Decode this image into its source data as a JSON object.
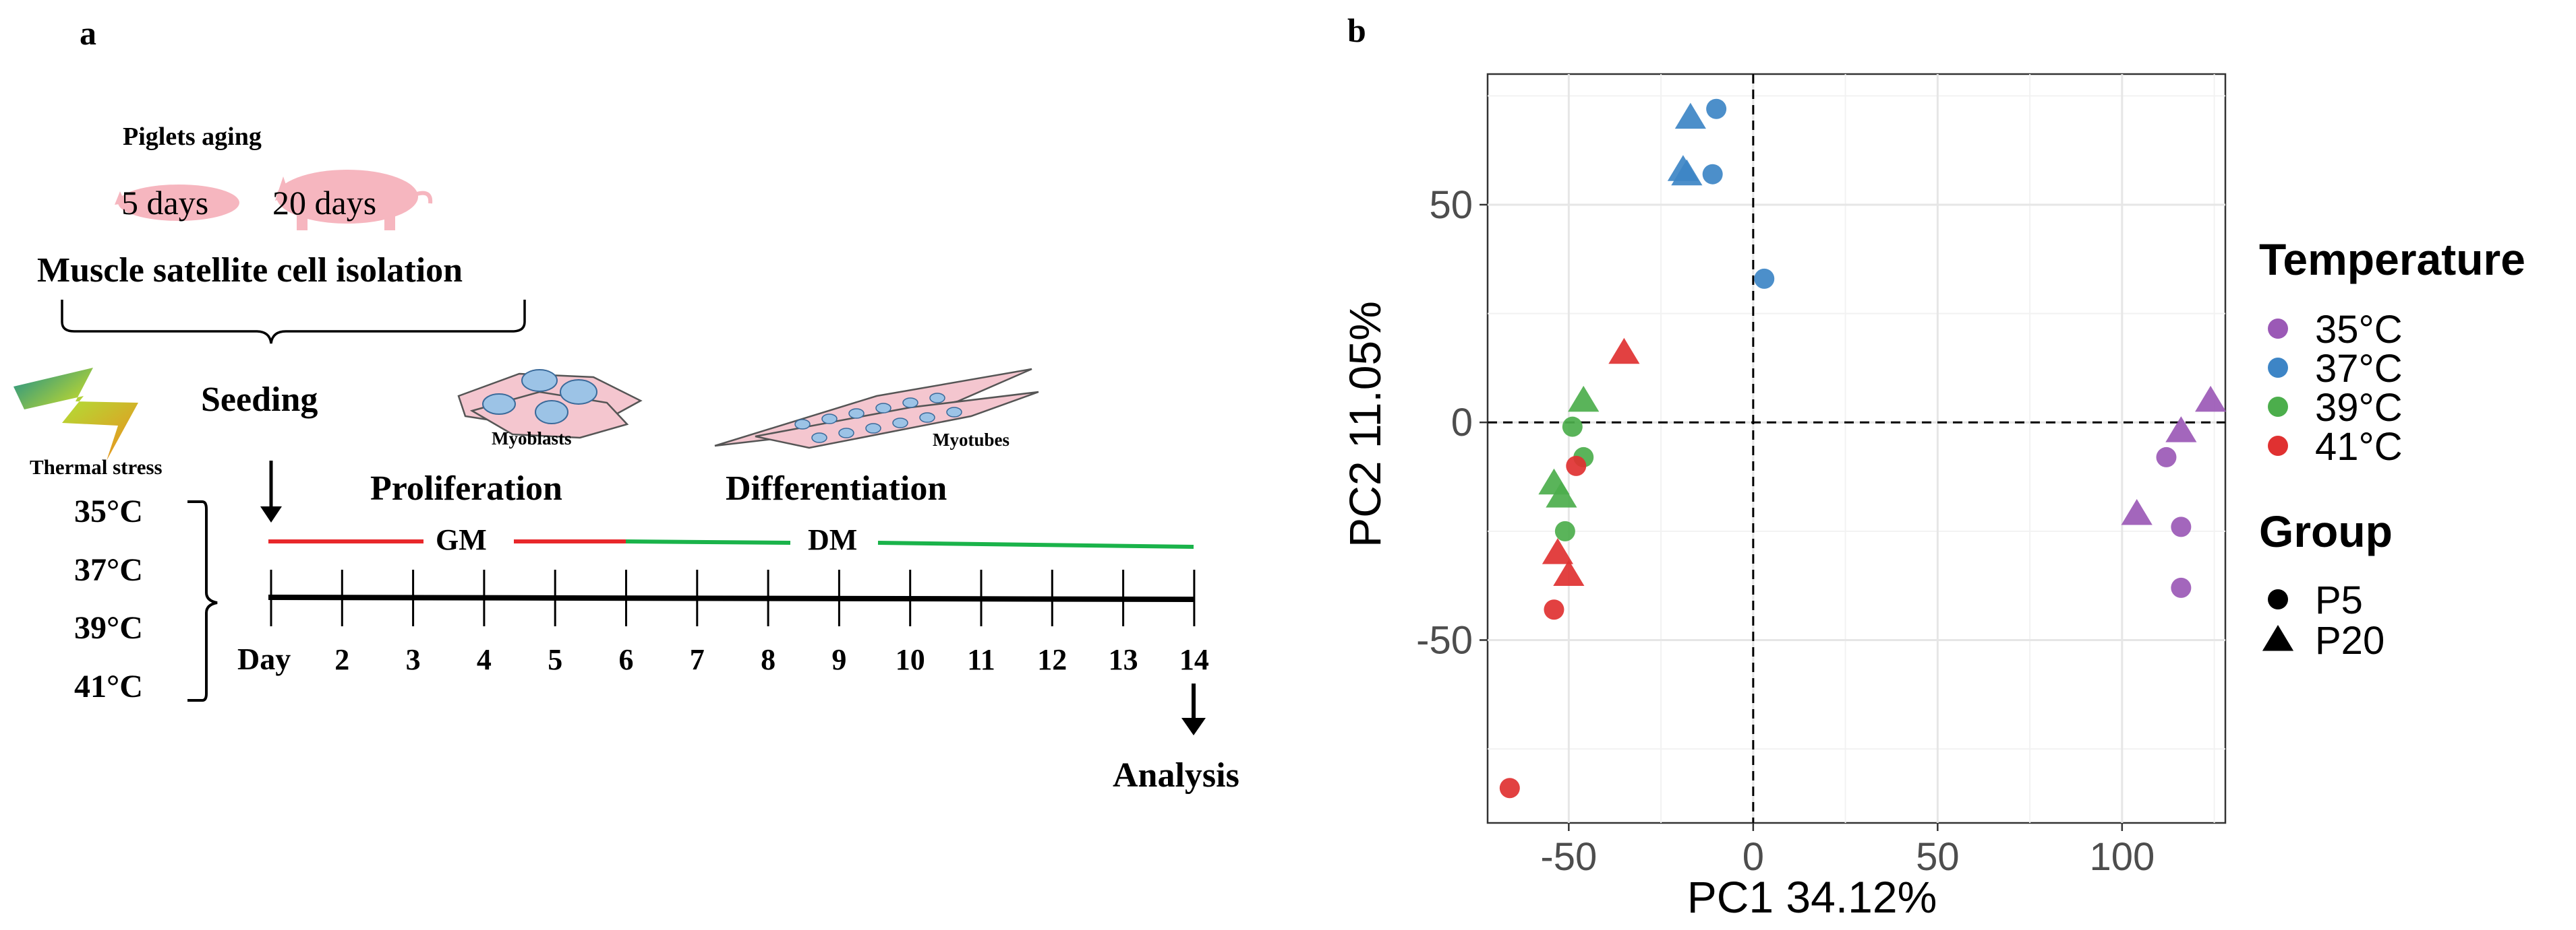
{
  "panel_a": {
    "label": "a",
    "piglets_heading": "Piglets aging",
    "age_1": "5 days",
    "age_2": "20 days",
    "isolation": "Muscle satellite cell isolation",
    "seeding": "Seeding",
    "thermal_stress": "Thermal stress",
    "temperatures": [
      "35°C",
      "37°C",
      "39°C",
      "41°C"
    ],
    "myoblasts": "Myoblasts",
    "myotubes": "Myotubes",
    "proliferation": "Proliferation",
    "differentiation": "Differentiation",
    "gm": "GM",
    "dm": "DM",
    "day_label": "Day",
    "days": [
      "2",
      "3",
      "4",
      "5",
      "6",
      "7",
      "8",
      "9",
      "10",
      "11",
      "12",
      "13",
      "14"
    ],
    "analysis": "Analysis",
    "colors": {
      "gm": "#e8272a",
      "dm": "#1ab34a",
      "cell_fill": "#f4c6cf",
      "nucleus": "#9cc3e6",
      "pig": "#f6b6bf"
    }
  },
  "panel_b": {
    "label": "b",
    "legend": {
      "temperature_title": "Temperature",
      "temperature_items": [
        {
          "label": "35°C",
          "color": "#9b59b6"
        },
        {
          "label": "37°C",
          "color": "#3d85c6"
        },
        {
          "label": "39°C",
          "color": "#4cae4c"
        },
        {
          "label": "41°C",
          "color": "#e03131"
        }
      ],
      "group_title": "Group",
      "group_items": [
        {
          "label": "P5",
          "shape": "circle"
        },
        {
          "label": "P20",
          "shape": "triangle"
        }
      ]
    }
  },
  "chart_data": {
    "type": "scatter",
    "title": "",
    "xlabel": "PC1 34.12%",
    "ylabel": "PC2 11.05%",
    "xlim": [
      -72,
      128
    ],
    "ylim": [
      -92,
      80
    ],
    "xticks": [
      -50,
      0,
      50,
      100
    ],
    "yticks": [
      -50,
      0,
      50
    ],
    "grid": true,
    "reference_lines": {
      "x": 0,
      "y": 0
    },
    "points": [
      {
        "x": -10,
        "y": 72,
        "temp": "37°C",
        "group": "P5"
      },
      {
        "x": -17,
        "y": 70,
        "temp": "37°C",
        "group": "P20"
      },
      {
        "x": -19,
        "y": 58,
        "temp": "37°C",
        "group": "P20"
      },
      {
        "x": -18,
        "y": 57,
        "temp": "37°C",
        "group": "P20"
      },
      {
        "x": -11,
        "y": 57,
        "temp": "37°C",
        "group": "P5"
      },
      {
        "x": 3,
        "y": 33,
        "temp": "37°C",
        "group": "P5"
      },
      {
        "x": -35,
        "y": 16,
        "temp": "41°C",
        "group": "P20"
      },
      {
        "x": -46,
        "y": 5,
        "temp": "39°C",
        "group": "P20"
      },
      {
        "x": -49,
        "y": -1,
        "temp": "39°C",
        "group": "P5"
      },
      {
        "x": -46,
        "y": -8,
        "temp": "39°C",
        "group": "P5"
      },
      {
        "x": -48,
        "y": -10,
        "temp": "41°C",
        "group": "P5"
      },
      {
        "x": -54,
        "y": -14,
        "temp": "39°C",
        "group": "P20"
      },
      {
        "x": -52,
        "y": -17,
        "temp": "39°C",
        "group": "P20"
      },
      {
        "x": -51,
        "y": -25,
        "temp": "39°C",
        "group": "P5"
      },
      {
        "x": -53,
        "y": -30,
        "temp": "41°C",
        "group": "P20"
      },
      {
        "x": -50,
        "y": -35,
        "temp": "41°C",
        "group": "P20"
      },
      {
        "x": -54,
        "y": -43,
        "temp": "41°C",
        "group": "P5"
      },
      {
        "x": -66,
        "y": -84,
        "temp": "41°C",
        "group": "P5"
      },
      {
        "x": 124,
        "y": 5,
        "temp": "35°C",
        "group": "P20"
      },
      {
        "x": 116,
        "y": -2,
        "temp": "35°C",
        "group": "P20"
      },
      {
        "x": 112,
        "y": -8,
        "temp": "35°C",
        "group": "P5"
      },
      {
        "x": 104,
        "y": -21,
        "temp": "35°C",
        "group": "P20"
      },
      {
        "x": 116,
        "y": -24,
        "temp": "35°C",
        "group": "P5"
      },
      {
        "x": 116,
        "y": -38,
        "temp": "35°C",
        "group": "P5"
      }
    ]
  }
}
